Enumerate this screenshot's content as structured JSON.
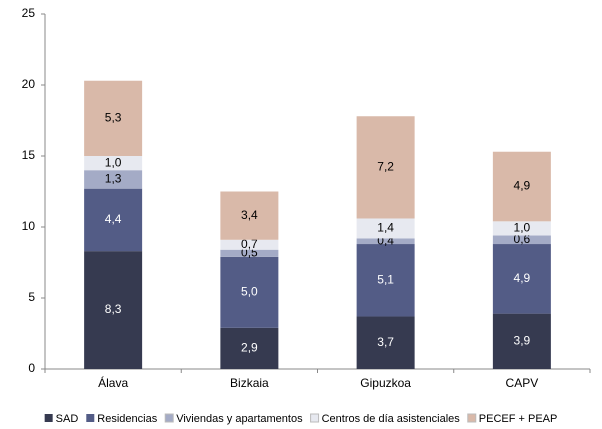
{
  "chart_data": {
    "type": "stacked_bar",
    "categories": [
      "Álava",
      "Bizkaia",
      "Gipuzkoa",
      "CAPV"
    ],
    "series": [
      {
        "name": "SAD",
        "color": "#363a50",
        "label_color": "#ffffff",
        "values": [
          8.3,
          2.9,
          3.7,
          3.9
        ],
        "value_labels": [
          "8,3",
          "2,9",
          "3,7",
          "3,9"
        ]
      },
      {
        "name": "Residencias",
        "color": "#535c86",
        "label_color": "#ffffff",
        "values": [
          4.4,
          5.0,
          5.1,
          4.9
        ],
        "value_labels": [
          "4,4",
          "5,0",
          "5,1",
          "4,9"
        ]
      },
      {
        "name": "Viviendas y apartamentos",
        "color": "#a4abc6",
        "label_color": "#000000",
        "values": [
          1.3,
          0.5,
          0.4,
          0.6
        ],
        "value_labels": [
          "1,3",
          "0,5",
          "0,4",
          "0,6"
        ]
      },
      {
        "name": "Centros de día asistenciales",
        "color": "#e7e9f0",
        "label_color": "#000000",
        "values": [
          1.0,
          0.7,
          1.4,
          1.0
        ],
        "value_labels": [
          "1,0",
          "0,7",
          "1,4",
          "1,0"
        ]
      },
      {
        "name": "PECEF + PEAP",
        "color": "#d9b9a9",
        "label_color": "#000000",
        "values": [
          5.3,
          3.4,
          7.2,
          4.9
        ],
        "value_labels": [
          "5,3",
          "3,4",
          "7,2",
          "4,9"
        ]
      }
    ],
    "ylim": [
      0,
      25
    ],
    "yticks": [
      0,
      5,
      10,
      15,
      20,
      25
    ],
    "grid": false,
    "legend": "bottom"
  }
}
